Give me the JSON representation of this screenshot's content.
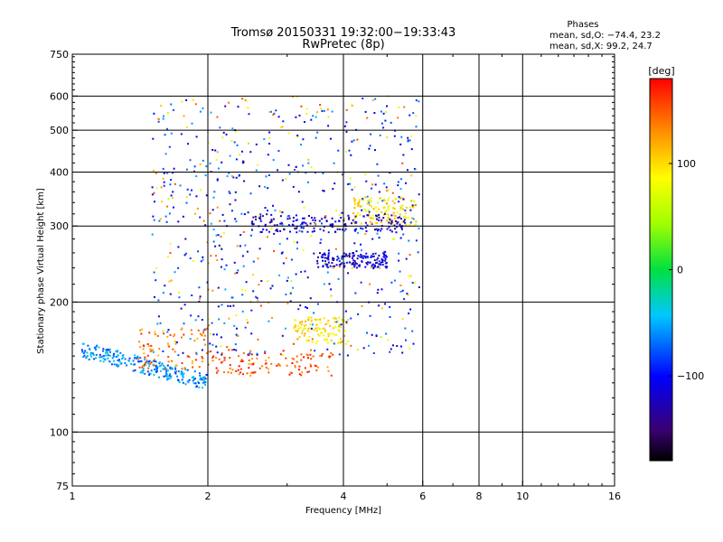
{
  "chart_data": {
    "type": "scatter",
    "title": "Tromsø 20150331 19:32:00−19:33:43",
    "subtitle": "RwPretec (8p)",
    "xlabel": "Frequency [MHz]",
    "ylabel": "Stationary phase Virtual Height [km]",
    "x_scale": "log",
    "y_scale": "log",
    "xlim": [
      1,
      16
    ],
    "ylim": [
      75,
      750
    ],
    "x_ticks": [
      1,
      2,
      4,
      6,
      8,
      10,
      16
    ],
    "y_ticks": [
      75,
      100,
      200,
      300,
      400,
      500,
      600,
      750
    ],
    "x_gridlines": [
      2,
      4,
      6,
      8,
      10
    ],
    "y_gridlines": [
      100,
      200,
      300,
      400,
      500,
      600
    ],
    "grid": true,
    "stats": {
      "heading": "Phases",
      "line_o": "mean, sd,O: −74.4, 23.2",
      "line_x": "mean, sd,X:  99.2, 24.7"
    },
    "colorbar": {
      "label": "[deg]",
      "range": [
        -180,
        180
      ],
      "ticks": [
        100,
        0,
        -100
      ],
      "tick_labels": [
        "100",
        "0",
        "−100"
      ],
      "colormap": "rainbow (black-purple-blue-cyan-green-yellow-orange-red)"
    },
    "series": [
      {
        "x_range": [
          1.05,
          2.0
        ],
        "y_range": [
          125,
          160
        ],
        "phase_deg": -60,
        "description": "low-frequency lower trace"
      },
      {
        "x_range": [
          1.4,
          2.0
        ],
        "y_range": [
          140,
          175
        ],
        "phase_deg": 140,
        "description": "orange/red patches"
      },
      {
        "x_range": [
          2.0,
          3.8
        ],
        "y_range": [
          135,
          155
        ],
        "phase_deg": 150,
        "description": "orange trace"
      },
      {
        "x_range": [
          3.1,
          4.1
        ],
        "y_range": [
          160,
          185
        ],
        "phase_deg": 95,
        "description": "yellow trace"
      },
      {
        "x_range": [
          3.5,
          5.0
        ],
        "y_range": [
          240,
          260
        ],
        "phase_deg": -115,
        "description": "blue trace"
      },
      {
        "x_range": [
          4.2,
          5.8
        ],
        "y_range": [
          300,
          350
        ],
        "phase_deg": 90,
        "description": "yellow-green cluster"
      },
      {
        "x_range": [
          2.5,
          5.5
        ],
        "y_range": [
          290,
          320
        ],
        "phase_deg": -120,
        "description": "dark blue trace"
      },
      {
        "x_range": [
          1.5,
          5.9
        ],
        "y_range": [
          150,
          600
        ],
        "phase_deg": -70,
        "description": "scattered cloud"
      }
    ]
  }
}
